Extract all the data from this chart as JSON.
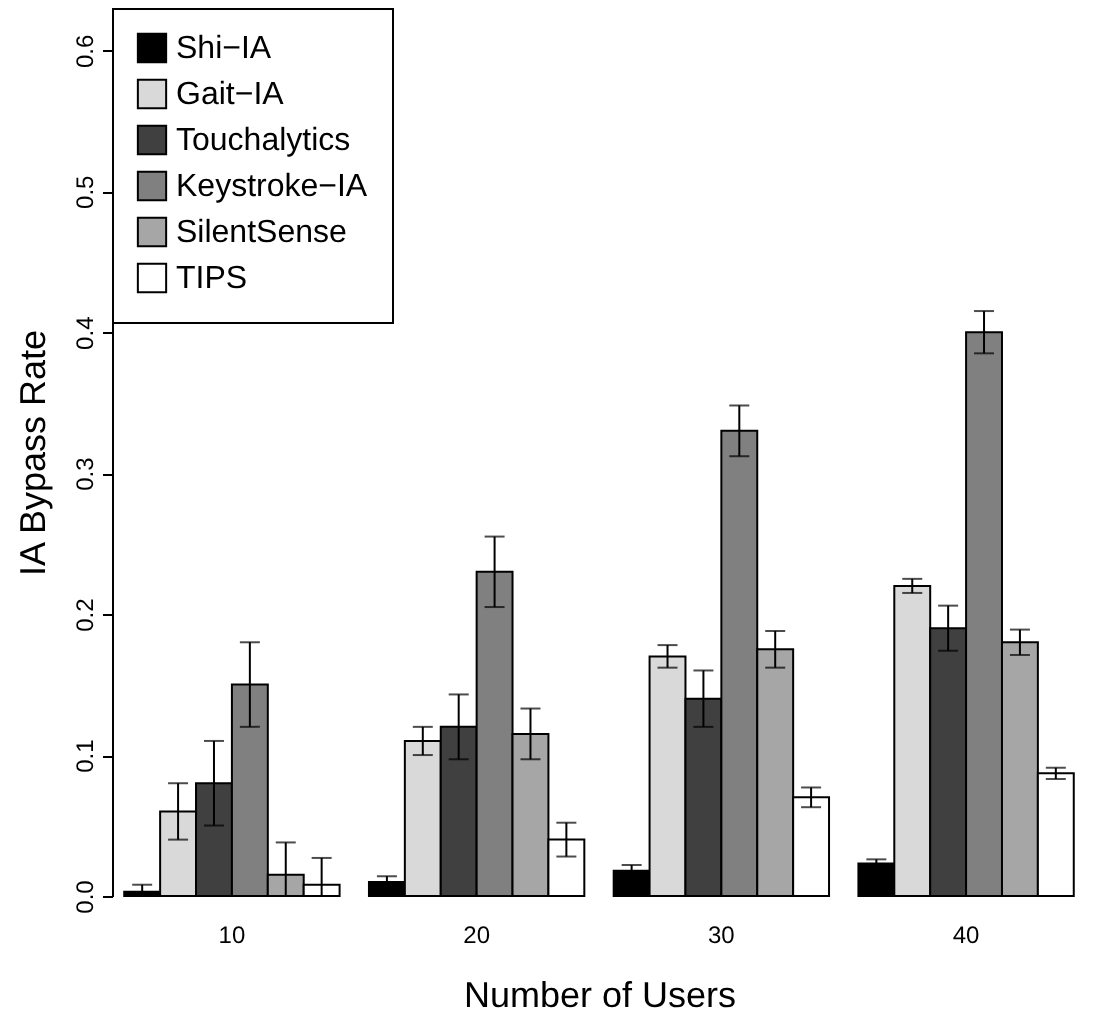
{
  "chart_data": {
    "type": "bar",
    "xlabel": "Number of Users",
    "ylabel": "IA Bypass Rate",
    "categories": [
      "10",
      "20",
      "30",
      "40"
    ],
    "ylim": [
      0,
      0.63
    ],
    "yticks": [
      {
        "value": 0,
        "label": "0.0"
      },
      0.1,
      0.2,
      0.3,
      0.4,
      0.5,
      0.6
    ],
    "grid": false,
    "legend": "top left",
    "series": [
      {
        "name": "Shi−IA",
        "color": "#000000",
        "values": [
          0.003,
          0.01,
          0.018,
          0.023
        ],
        "errors": [
          [
            0,
            0.008
          ],
          0.004,
          0.004,
          0.003
        ]
      },
      {
        "name": "Gait−IA",
        "color": "#d9d9d9",
        "values": [
          0.06,
          0.11,
          0.17,
          0.22
        ],
        "errors": [
          0.02,
          0.01,
          0.008,
          0.005
        ]
      },
      {
        "name": "Touchalytics",
        "color": "#404040",
        "values": [
          0.08,
          0.12,
          0.14,
          0.19
        ],
        "errors": [
          0.03,
          0.023,
          0.02,
          0.016
        ]
      },
      {
        "name": "Keystroke−IA",
        "color": "#808080",
        "values": [
          0.15,
          0.23,
          0.33,
          0.4
        ],
        "errors": [
          0.03,
          0.025,
          0.018,
          0.015
        ]
      },
      {
        "name": "SilentSense",
        "color": "#a6a6a6",
        "values": [
          0.015,
          0.115,
          0.175,
          0.18
        ],
        "errors": [
          [
            0,
            0.038
          ],
          0.018,
          0.013,
          0.009
        ]
      },
      {
        "name": "TIPS",
        "color": "#ffffff",
        "values": [
          0.008,
          0.04,
          0.07,
          0.087
        ],
        "errors": [
          [
            0,
            0.027
          ],
          0.012,
          0.007,
          0.004
        ]
      }
    ]
  }
}
